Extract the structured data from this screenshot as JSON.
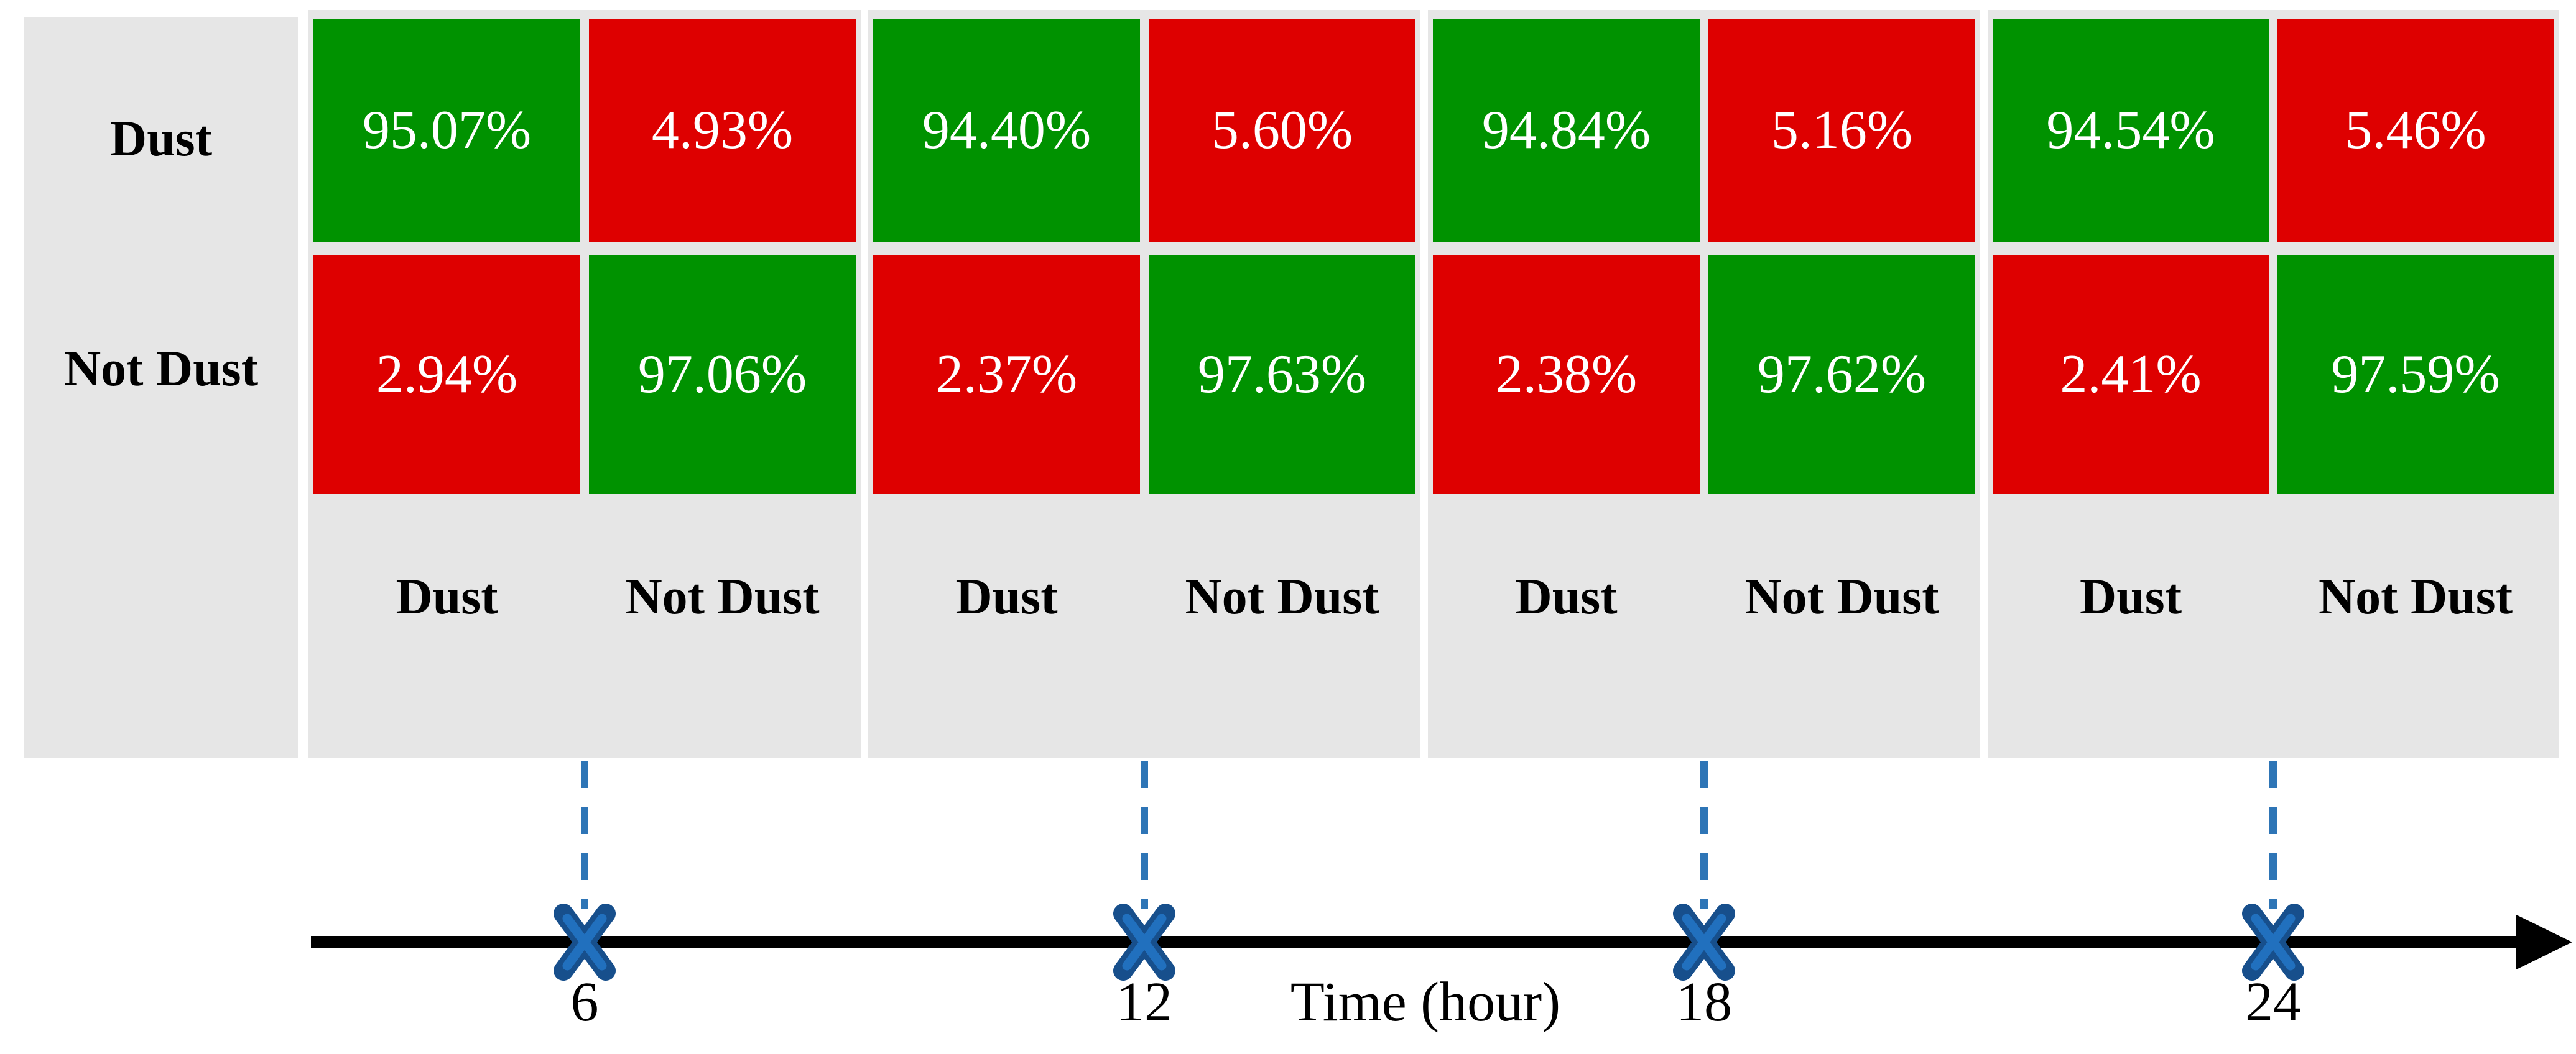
{
  "figure": {
    "row_axis_labels": [
      "Dust",
      "Not Dust"
    ],
    "col_axis_labels": [
      "Dust",
      "Not Dust"
    ],
    "matrices": [
      {
        "rows": [
          [
            "95.07%",
            "4.93%"
          ],
          [
            "2.94%",
            "97.06%"
          ]
        ]
      },
      {
        "rows": [
          [
            "94.40%",
            "5.60%"
          ],
          [
            "2.37%",
            "97.63%"
          ]
        ]
      },
      {
        "rows": [
          [
            "94.84%",
            "5.16%"
          ],
          [
            "2.38%",
            "97.62%"
          ]
        ]
      },
      {
        "rows": [
          [
            "94.54%",
            "5.46%"
          ],
          [
            "2.41%",
            "97.59%"
          ]
        ]
      }
    ],
    "timeline": {
      "axis_label": "Time (hour)",
      "ticks": [
        "6",
        "12",
        "18",
        "24"
      ]
    }
  },
  "chart_data": {
    "type": "heatmap",
    "xlabel": "Time (hour)",
    "x": [
      6,
      12,
      18,
      24
    ],
    "row_labels": [
      "Dust",
      "Not Dust"
    ],
    "col_labels": [
      "Dust",
      "Not Dust"
    ],
    "series": [
      {
        "name": "hour 6",
        "matrix_percent": [
          [
            95.07,
            4.93
          ],
          [
            2.94,
            97.06
          ]
        ]
      },
      {
        "name": "hour 12",
        "matrix_percent": [
          [
            94.4,
            5.6
          ],
          [
            2.37,
            97.63
          ]
        ]
      },
      {
        "name": "hour 18",
        "matrix_percent": [
          [
            94.84,
            5.16
          ],
          [
            2.38,
            97.62
          ]
        ]
      },
      {
        "name": "hour 24",
        "matrix_percent": [
          [
            94.54,
            5.46
          ],
          [
            2.41,
            97.59
          ]
        ]
      }
    ],
    "legend_position": "none",
    "grid": false
  },
  "colors": {
    "correct_cell_green": "#009200",
    "incorrect_cell_red": "#DE0000",
    "panel_gray": "#E6E6E6",
    "cell_text": "#FFFFFF",
    "label_text": "#000000",
    "timeline_black": "#000000",
    "dash_blue": "#2E75B6",
    "marker_blue_dark": "#174F8C",
    "marker_blue_bright": "#2170BE"
  }
}
